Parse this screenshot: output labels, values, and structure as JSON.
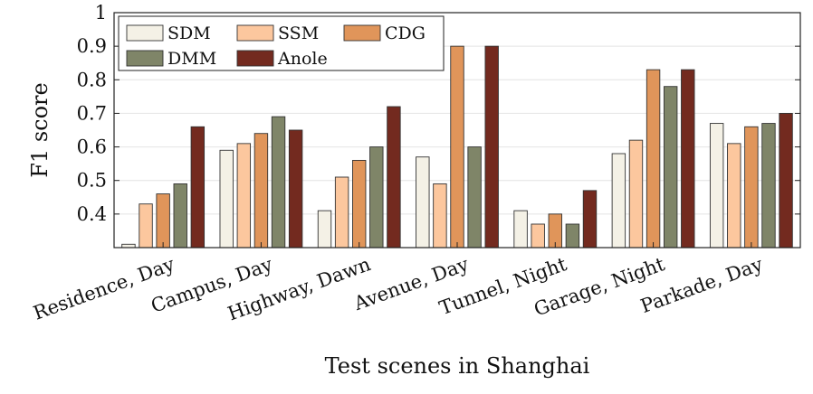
{
  "chart_data": {
    "type": "bar",
    "title": "",
    "xlabel": "Test scenes in Shanghai",
    "ylabel": "F1 score",
    "ylim": [
      0.3,
      1.0
    ],
    "yticks": [
      0.4,
      0.5,
      0.6,
      0.7,
      0.8,
      0.9,
      1.0
    ],
    "ytick_labels": [
      "0.4",
      "0.5",
      "0.6",
      "0.7",
      "0.8",
      "0.9",
      "1"
    ],
    "grid": true,
    "legend_position": "top-left",
    "categories": [
      "Residence, Day",
      "Campus, Day",
      "Highway, Dawn",
      "Avenue, Day",
      "Tunnel, Night",
      "Garage, Night",
      "Parkade, Day"
    ],
    "series": [
      {
        "name": "SDM",
        "color": "#f4f1e6",
        "values": [
          0.31,
          0.59,
          0.41,
          0.57,
          0.41,
          0.58,
          0.67
        ]
      },
      {
        "name": "SSM",
        "color": "#fcc79e",
        "values": [
          0.43,
          0.61,
          0.51,
          0.49,
          0.37,
          0.62,
          0.61
        ]
      },
      {
        "name": "CDG",
        "color": "#e0955a",
        "values": [
          0.46,
          0.64,
          0.56,
          0.9,
          0.4,
          0.83,
          0.66
        ]
      },
      {
        "name": "DMM",
        "color": "#7f8568",
        "values": [
          0.49,
          0.69,
          0.6,
          0.6,
          0.37,
          0.78,
          0.67
        ]
      },
      {
        "name": "Anole",
        "color": "#732a1f",
        "values": [
          0.66,
          0.65,
          0.72,
          0.9,
          0.47,
          0.83,
          0.7
        ]
      }
    ]
  }
}
